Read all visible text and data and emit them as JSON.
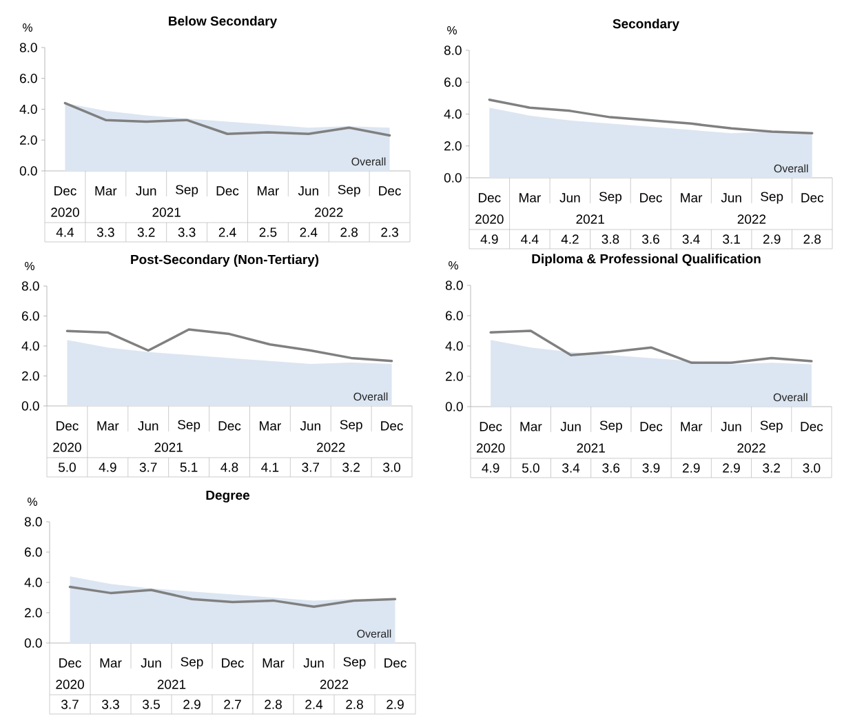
{
  "chart_data": [
    {
      "type": "line",
      "title": "Below Secondary",
      "ylabel": "%",
      "categories": [
        "Dec",
        "Mar",
        "Jun",
        "Sep",
        "Dec",
        "Mar",
        "Jun",
        "Sep",
        "Dec"
      ],
      "annotations": [
        "2020",
        "2021",
        "2022"
      ],
      "ylim": [
        0,
        8
      ],
      "yticks": [
        {
          "value": 0,
          "label": "0.0"
        },
        {
          "value": 2,
          "label": "2.0"
        },
        {
          "value": 4,
          "label": "4.0"
        },
        {
          "value": 6,
          "label": "6.0"
        },
        {
          "value": 8,
          "label": "8.0"
        }
      ],
      "series": [
        {
          "name": "Overall",
          "type": "area",
          "color": "#dce6f2",
          "values": [
            4.4,
            3.9,
            3.6,
            3.4,
            3.2,
            3.0,
            2.8,
            2.9,
            2.8
          ]
        },
        {
          "color": "#808080",
          "values": [
            4.4,
            3.3,
            3.2,
            3.3,
            2.4,
            2.5,
            2.4,
            2.8,
            2.3
          ],
          "value_labels": [
            "4.4",
            "3.3",
            "3.2",
            "3.3",
            "2.4",
            "2.5",
            "2.4",
            "2.8",
            "2.3"
          ]
        }
      ]
    },
    {
      "type": "line",
      "title": "Secondary",
      "ylabel": "%",
      "categories": [
        "Dec",
        "Mar",
        "Jun",
        "Sep",
        "Dec",
        "Mar",
        "Jun",
        "Sep",
        "Dec"
      ],
      "annotations": [
        "2020",
        "2021",
        "2022"
      ],
      "ylim": [
        0,
        8
      ],
      "yticks": [
        {
          "value": 0,
          "label": "0.0"
        },
        {
          "value": 2,
          "label": "2.0"
        },
        {
          "value": 4,
          "label": "4.0"
        },
        {
          "value": 6,
          "label": "6.0"
        },
        {
          "value": 8,
          "label": "8.0"
        }
      ],
      "series": [
        {
          "name": "Overall",
          "type": "area",
          "color": "#dce6f2",
          "values": [
            4.4,
            3.9,
            3.6,
            3.4,
            3.2,
            3.0,
            2.8,
            2.9,
            2.8
          ]
        },
        {
          "color": "#808080",
          "values": [
            4.9,
            4.4,
            4.2,
            3.8,
            3.6,
            3.4,
            3.1,
            2.9,
            2.8
          ],
          "value_labels": [
            "4.9",
            "4.4",
            "4.2",
            "3.8",
            "3.6",
            "3.4",
            "3.1",
            "2.9",
            "2.8"
          ]
        }
      ]
    },
    {
      "type": "line",
      "title": "Post-Secondary (Non-Tertiary)",
      "ylabel": "%",
      "categories": [
        "Dec",
        "Mar",
        "Jun",
        "Sep",
        "Dec",
        "Mar",
        "Jun",
        "Sep",
        "Dec"
      ],
      "annotations": [
        "2020",
        "2021",
        "2022"
      ],
      "ylim": [
        0,
        8
      ],
      "yticks": [
        {
          "value": 0,
          "label": "0.0"
        },
        {
          "value": 2,
          "label": "2.0"
        },
        {
          "value": 4,
          "label": "4.0"
        },
        {
          "value": 6,
          "label": "6.0"
        },
        {
          "value": 8,
          "label": "8.0"
        }
      ],
      "series": [
        {
          "name": "Overall",
          "type": "area",
          "color": "#dce6f2",
          "values": [
            4.4,
            3.9,
            3.6,
            3.4,
            3.2,
            3.0,
            2.8,
            2.9,
            2.8
          ]
        },
        {
          "color": "#808080",
          "values": [
            5.0,
            4.9,
            3.7,
            5.1,
            4.8,
            4.1,
            3.7,
            3.2,
            3.0
          ],
          "value_labels": [
            "5.0",
            "4.9",
            "3.7",
            "5.1",
            "4.8",
            "4.1",
            "3.7",
            "3.2",
            "3.0"
          ]
        }
      ]
    },
    {
      "type": "line",
      "title": "Diploma & Professional Qualification",
      "ylabel": "%",
      "categories": [
        "Dec",
        "Mar",
        "Jun",
        "Sep",
        "Dec",
        "Mar",
        "Jun",
        "Sep",
        "Dec"
      ],
      "annotations": [
        "2020",
        "2021",
        "2022"
      ],
      "ylim": [
        0,
        8
      ],
      "yticks": [
        {
          "value": 0,
          "label": "0.0"
        },
        {
          "value": 2,
          "label": "2.0"
        },
        {
          "value": 4,
          "label": "4.0"
        },
        {
          "value": 6,
          "label": "6.0"
        },
        {
          "value": 8,
          "label": "8.0"
        }
      ],
      "series": [
        {
          "name": "Overall",
          "type": "area",
          "color": "#dce6f2",
          "values": [
            4.4,
            3.9,
            3.6,
            3.4,
            3.2,
            3.0,
            2.8,
            2.9,
            2.8
          ]
        },
        {
          "color": "#808080",
          "values": [
            4.9,
            5.0,
            3.4,
            3.6,
            3.9,
            2.9,
            2.9,
            3.2,
            3.0
          ],
          "value_labels": [
            "4.9",
            "5.0",
            "3.4",
            "3.6",
            "3.9",
            "2.9",
            "2.9",
            "3.2",
            "3.0"
          ]
        }
      ]
    },
    {
      "type": "line",
      "title": "Degree",
      "ylabel": "%",
      "categories": [
        "Dec",
        "Mar",
        "Jun",
        "Sep",
        "Dec",
        "Mar",
        "Jun",
        "Sep",
        "Dec"
      ],
      "annotations": [
        "2020",
        "2021",
        "2022"
      ],
      "ylim": [
        0,
        8
      ],
      "yticks": [
        {
          "value": 0,
          "label": "0.0"
        },
        {
          "value": 2,
          "label": "2.0"
        },
        {
          "value": 4,
          "label": "4.0"
        },
        {
          "value": 6,
          "label": "6.0"
        },
        {
          "value": 8,
          "label": "8.0"
        }
      ],
      "series": [
        {
          "name": "Overall",
          "type": "area",
          "color": "#dce6f2",
          "values": [
            4.4,
            3.9,
            3.6,
            3.4,
            3.2,
            3.0,
            2.8,
            2.9,
            2.8
          ]
        },
        {
          "color": "#808080",
          "values": [
            3.7,
            3.3,
            3.5,
            2.9,
            2.7,
            2.8,
            2.4,
            2.8,
            2.9
          ],
          "value_labels": [
            "3.7",
            "3.3",
            "3.5",
            "2.9",
            "2.7",
            "2.8",
            "2.4",
            "2.8",
            "2.9"
          ]
        }
      ]
    }
  ]
}
